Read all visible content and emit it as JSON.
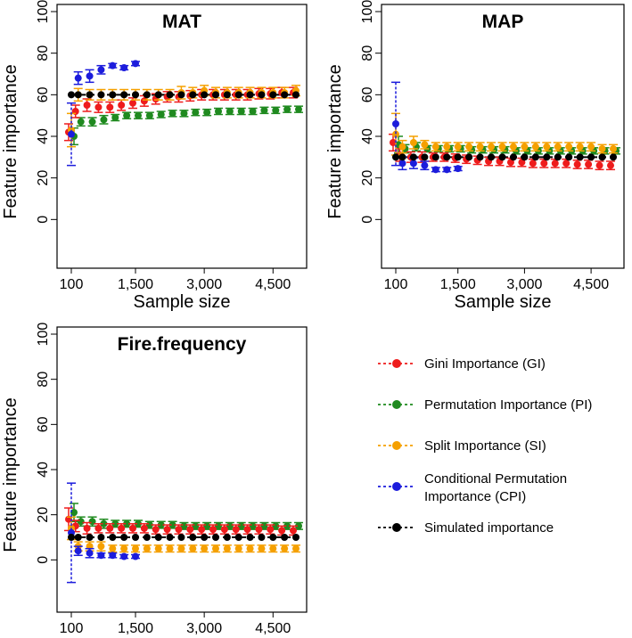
{
  "chart_data": {
    "type": "scatter",
    "x_tick_labels": [
      "100",
      "1,500",
      "3,000",
      "4,500"
    ],
    "x_tick_values": [
      100,
      1500,
      3000,
      4500
    ],
    "x_values": [
      100,
      250,
      500,
      750,
      1000,
      1250,
      1500,
      1750,
      2000,
      2250,
      2500,
      2750,
      3000,
      3250,
      3500,
      3750,
      4000,
      4250,
      4500,
      4750,
      5000
    ],
    "legend": [
      {
        "key": "gi",
        "label": "Gini Importance (GI)",
        "color": "#ee1c1c"
      },
      {
        "key": "pi",
        "label": "Permutation Importance (PI)",
        "color": "#1f8a1f"
      },
      {
        "key": "si",
        "label": "Split Importance (SI)",
        "color": "#f5a000"
      },
      {
        "key": "cpi",
        "label": "Conditional Permutation Importance (CPI)",
        "label_lines": [
          "Conditional Permutation",
          "Importance (CPI)"
        ],
        "color": "#1c1cdc"
      },
      {
        "key": "sim",
        "label": "Simulated importance",
        "color": "#000000"
      }
    ],
    "panels": [
      {
        "title": "MAT",
        "xlabel": "Sample size",
        "ylabel": "Feature importance",
        "ylim": [
          -20,
          100
        ],
        "y_ticks": [
          0,
          20,
          40,
          60,
          80,
          100
        ],
        "x_tick_labels": [
          "100",
          "1,500",
          "3,000",
          "4,500"
        ],
        "simulated": 60,
        "series": [
          {
            "key": "gi",
            "values": [
              42,
              52,
              55,
              54,
              54,
              55,
              56,
              57,
              58,
              59,
              59,
              59.5,
              60,
              60,
              60,
              60,
              60,
              60.5,
              60.5,
              61,
              61
            ],
            "err": [
              4,
              3,
              3,
              2.5,
              2.5,
              2.5,
              2.5,
              2.5,
              2.5,
              2.5,
              2.5,
              2.5,
              2.5,
              2.5,
              2.5,
              2.5,
              2.5,
              2.5,
              2.5,
              2.5,
              2.5
            ]
          },
          {
            "key": "pi",
            "values": [
              40,
              47,
              47,
              48,
              49,
              50,
              50,
              50,
              50.5,
              51,
              51,
              51.5,
              51.5,
              52,
              52,
              52,
              52,
              52.5,
              52.5,
              53,
              53
            ],
            "err": [
              4,
              2,
              2,
              2,
              1.5,
              1.5,
              1.5,
              1.5,
              1.5,
              1.5,
              1.5,
              1.5,
              1.5,
              1.5,
              1.5,
              1.5,
              1.5,
              1.5,
              1.5,
              1.5,
              1.5
            ]
          },
          {
            "key": "si",
            "values": [
              43,
              60,
              60,
              60,
              60,
              60,
              60,
              60,
              60,
              60,
              61,
              61,
              62,
              61,
              61,
              61,
              61,
              61,
              61,
              61,
              62
            ],
            "err": [
              8,
              3,
              2.5,
              2.5,
              2.5,
              2.5,
              2.5,
              2.5,
              2.5,
              2.5,
              3,
              2.5,
              2.5,
              2.5,
              2.5,
              2.5,
              2.5,
              2.5,
              2.5,
              2.5,
              2.5
            ]
          },
          {
            "key": "cpi",
            "values": [
              41,
              68,
              69,
              72,
              74,
              73,
              75
            ],
            "err": [
              15,
              3,
              3,
              2,
              1,
              1,
              1
            ]
          }
        ]
      },
      {
        "title": "MAP",
        "xlabel": "Sample size",
        "ylabel": "Feature importance",
        "ylim": [
          -20,
          100
        ],
        "y_ticks": [
          0,
          20,
          40,
          60,
          80,
          100
        ],
        "x_tick_labels": [
          "100",
          "1,500",
          "3,000",
          "4,500"
        ],
        "simulated": 30,
        "series": [
          {
            "key": "gi",
            "values": [
              37,
              31,
              30,
              30,
              30,
              30,
              29.5,
              29,
              28.5,
              28,
              28,
              27.5,
              27.5,
              27,
              27,
              27,
              27,
              26.5,
              26.5,
              26,
              26
            ],
            "err": [
              4,
              3,
              2.5,
              2.5,
              2,
              2,
              2,
              2,
              2,
              2,
              2,
              2,
              2,
              2,
              2,
              2,
              2,
              2,
              2,
              2,
              2
            ]
          },
          {
            "key": "pi",
            "values": [
              36,
              34,
              35,
              34,
              34,
              34,
              34,
              33.5,
              33.5,
              33.5,
              33.5,
              33,
              33,
              33,
              33,
              33,
              33,
              33,
              33,
              33,
              33
            ],
            "err": [
              4,
              2,
              2,
              1.5,
              1.5,
              1.5,
              1.5,
              1.5,
              1.5,
              1.5,
              1.5,
              1.5,
              1.5,
              1.5,
              1.5,
              1.5,
              1.5,
              1.5,
              1.5,
              1.5,
              1.5
            ]
          },
          {
            "key": "si",
            "values": [
              41,
              35,
              37,
              36,
              35,
              35,
              35,
              35,
              35,
              35,
              35,
              35,
              35,
              35,
              35,
              35,
              35,
              35,
              35,
              34,
              34
            ],
            "err": [
              10,
              3,
              3,
              2,
              2,
              2,
              2,
              2,
              2,
              2,
              2,
              2,
              2,
              2,
              2,
              2,
              2,
              2,
              2,
              2,
              2
            ]
          },
          {
            "key": "cpi",
            "values": [
              46,
              27,
              27,
              26,
              24,
              24,
              24.5
            ],
            "err": [
              20,
              3,
              2.5,
              2,
              1,
              1,
              1
            ]
          }
        ]
      },
      {
        "title": "Fire.frequency",
        "xlabel": "Sample size",
        "ylabel": "Feature importance",
        "ylim": [
          -20,
          100
        ],
        "y_ticks": [
          0,
          20,
          40,
          60,
          80,
          100
        ],
        "x_tick_labels": [
          "100",
          "1,500",
          "3,000",
          "4,500"
        ],
        "simulated": 10,
        "series": [
          {
            "key": "gi",
            "values": [
              18,
              15,
              14,
              14,
              14,
              14,
              14,
              14,
              13.5,
              13.5,
              13.5,
              13.5,
              13.5,
              13.5,
              13.5,
              13.5,
              13.5,
              13.5,
              13.5,
              13,
              13
            ],
            "err": [
              5,
              2.5,
              2.5,
              2,
              2,
              2,
              2,
              2,
              2,
              2,
              2,
              2,
              2,
              2,
              2,
              2,
              2,
              2,
              2,
              2,
              2
            ]
          },
          {
            "key": "pi",
            "values": [
              21,
              17,
              17,
              16,
              16,
              16,
              16,
              15.5,
              15.5,
              15.5,
              15,
              15,
              15,
              15,
              15,
              15,
              15,
              15,
              15,
              15,
              15
            ],
            "err": [
              4,
              2,
              2,
              2,
              1.5,
              1.5,
              1.5,
              1.5,
              1.5,
              1.5,
              1.5,
              1.5,
              1.5,
              1.5,
              1.5,
              1.5,
              1.5,
              1.5,
              1.5,
              1.5,
              1.5
            ]
          },
          {
            "key": "si",
            "values": [
              14,
              6,
              6,
              6,
              5,
              5,
              5,
              5,
              5,
              5,
              5,
              5,
              5,
              5,
              5,
              5,
              5,
              5,
              5,
              5,
              5
            ],
            "err": [
              5,
              2,
              2,
              2,
              1.5,
              1.5,
              1.5,
              1.5,
              1.5,
              1.5,
              1.5,
              1.5,
              1.5,
              1.5,
              1.5,
              1.5,
              1.5,
              1.5,
              1.5,
              1.5,
              1.5
            ]
          },
          {
            "key": "cpi",
            "values": [
              12,
              4,
              3,
              2,
              2,
              1.5,
              1.5
            ],
            "err": [
              22,
              2,
              2,
              1,
              1,
              0.8,
              0.8
            ]
          }
        ]
      }
    ]
  }
}
